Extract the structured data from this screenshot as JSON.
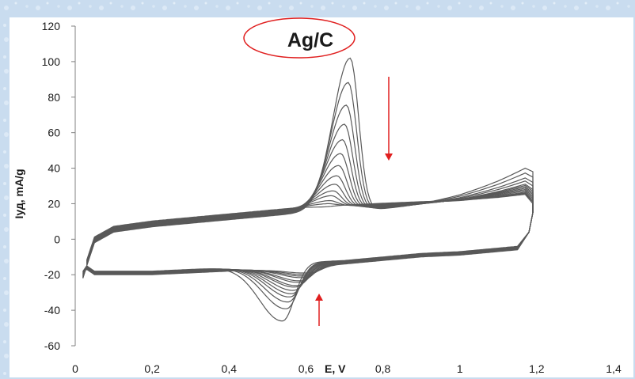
{
  "colors": {
    "background": "#c9dcef",
    "plot_background": "#ffffff",
    "series": "#595959",
    "annotation": "#e01f1f",
    "axis": "#808080"
  },
  "chart_data": {
    "type": "line",
    "title": "Ag/C",
    "xlabel": "E, V",
    "ylabel": "Iуд, mA/g",
    "xlim": [
      0,
      1.4
    ],
    "ylim": [
      -60,
      120
    ],
    "x_ticks": [
      "0",
      "0,2",
      "0,4",
      "0,6",
      "0,8",
      "1",
      "1,2",
      "1,4"
    ],
    "y_ticks": [
      "-60",
      "-40",
      "-20",
      "0",
      "20",
      "40",
      "60",
      "80",
      "100",
      "120"
    ],
    "grid": false,
    "legend": "none",
    "annotations": {
      "title_circle": "ellipse around title",
      "down_arrow": "arrow pointing down near anodic peak (peak current decreasing with cycling)",
      "up_arrow": "arrow pointing up near cathodic peak (peak current decreasing with cycling)"
    },
    "curve_template": {
      "anodic_branch": [
        [
          0.03,
          -15
        ],
        [
          0.05,
          -2
        ],
        [
          0.1,
          4
        ],
        [
          0.2,
          7
        ],
        [
          0.3,
          9
        ],
        [
          0.4,
          11
        ],
        [
          0.5,
          13
        ],
        [
          0.55,
          14
        ],
        [
          0.6,
          15
        ],
        [
          0.7,
          16
        ],
        [
          0.8,
          17
        ],
        [
          0.9,
          18
        ],
        [
          1.0,
          19
        ],
        [
          1.1,
          21
        ],
        [
          1.17,
          23
        ],
        [
          1.19,
          22
        ],
        [
          1.19,
          15
        ]
      ],
      "cathodic_branch": [
        [
          1.19,
          15
        ],
        [
          1.18,
          5
        ],
        [
          1.15,
          -4
        ],
        [
          1.1,
          -5
        ],
        [
          1.0,
          -7
        ],
        [
          0.9,
          -8
        ],
        [
          0.8,
          -10
        ],
        [
          0.7,
          -12
        ],
        [
          0.6,
          -13
        ],
        [
          0.5,
          -15
        ],
        [
          0.4,
          -16
        ],
        [
          0.3,
          -17
        ],
        [
          0.2,
          -18
        ],
        [
          0.1,
          -18
        ],
        [
          0.05,
          -18
        ],
        [
          0.03,
          -15
        ]
      ]
    },
    "series": [
      {
        "anodic_peak": {
          "E": 0.715,
          "I": 102
        },
        "cathodic_peak": {
          "E": 0.54,
          "I": -46
        },
        "upper_end_I": 40
      },
      {
        "anodic_peak": {
          "E": 0.71,
          "I": 88
        },
        "cathodic_peak": {
          "E": 0.55,
          "I": -39
        },
        "upper_end_I": 37
      },
      {
        "anodic_peak": {
          "E": 0.705,
          "I": 75
        },
        "cathodic_peak": {
          "E": 0.555,
          "I": -35
        },
        "upper_end_I": 34
      },
      {
        "anodic_peak": {
          "E": 0.7,
          "I": 64
        },
        "cathodic_peak": {
          "E": 0.56,
          "I": -32
        },
        "upper_end_I": 32
      },
      {
        "anodic_peak": {
          "E": 0.695,
          "I": 55
        },
        "cathodic_peak": {
          "E": 0.565,
          "I": -30
        },
        "upper_end_I": 30
      },
      {
        "anodic_peak": {
          "E": 0.69,
          "I": 47
        },
        "cathodic_peak": {
          "E": 0.57,
          "I": -28
        },
        "upper_end_I": 29
      },
      {
        "anodic_peak": {
          "E": 0.685,
          "I": 40
        },
        "cathodic_peak": {
          "E": 0.575,
          "I": -26
        },
        "upper_end_I": 28
      },
      {
        "anodic_peak": {
          "E": 0.68,
          "I": 34
        },
        "cathodic_peak": {
          "E": 0.58,
          "I": -25
        },
        "upper_end_I": 27
      },
      {
        "anodic_peak": {
          "E": 0.675,
          "I": 29
        },
        "cathodic_peak": {
          "E": 0.585,
          "I": -23
        },
        "upper_end_I": 26
      },
      {
        "anodic_peak": {
          "E": 0.67,
          "I": 25
        },
        "cathodic_peak": {
          "E": 0.59,
          "I": -22
        },
        "upper_end_I": 25
      },
      {
        "anodic_peak": {
          "E": 0.665,
          "I": 22
        },
        "cathodic_peak": {
          "E": 0.595,
          "I": -20
        },
        "upper_end_I": 24
      },
      {
        "anodic_peak": {
          "E": 0.66,
          "I": 19
        },
        "cathodic_peak": {
          "E": 0.6,
          "I": -19
        },
        "upper_end_I": 23
      },
      {
        "anodic_peak": {
          "E": 0.655,
          "I": 17
        },
        "cathodic_peak": {
          "E": 0.605,
          "I": -18
        },
        "upper_end_I": 23
      },
      {
        "anodic_peak": {
          "E": 0.65,
          "I": 15
        },
        "cathodic_peak": {
          "E": 0.61,
          "I": -17
        },
        "upper_end_I": 22
      }
    ]
  }
}
